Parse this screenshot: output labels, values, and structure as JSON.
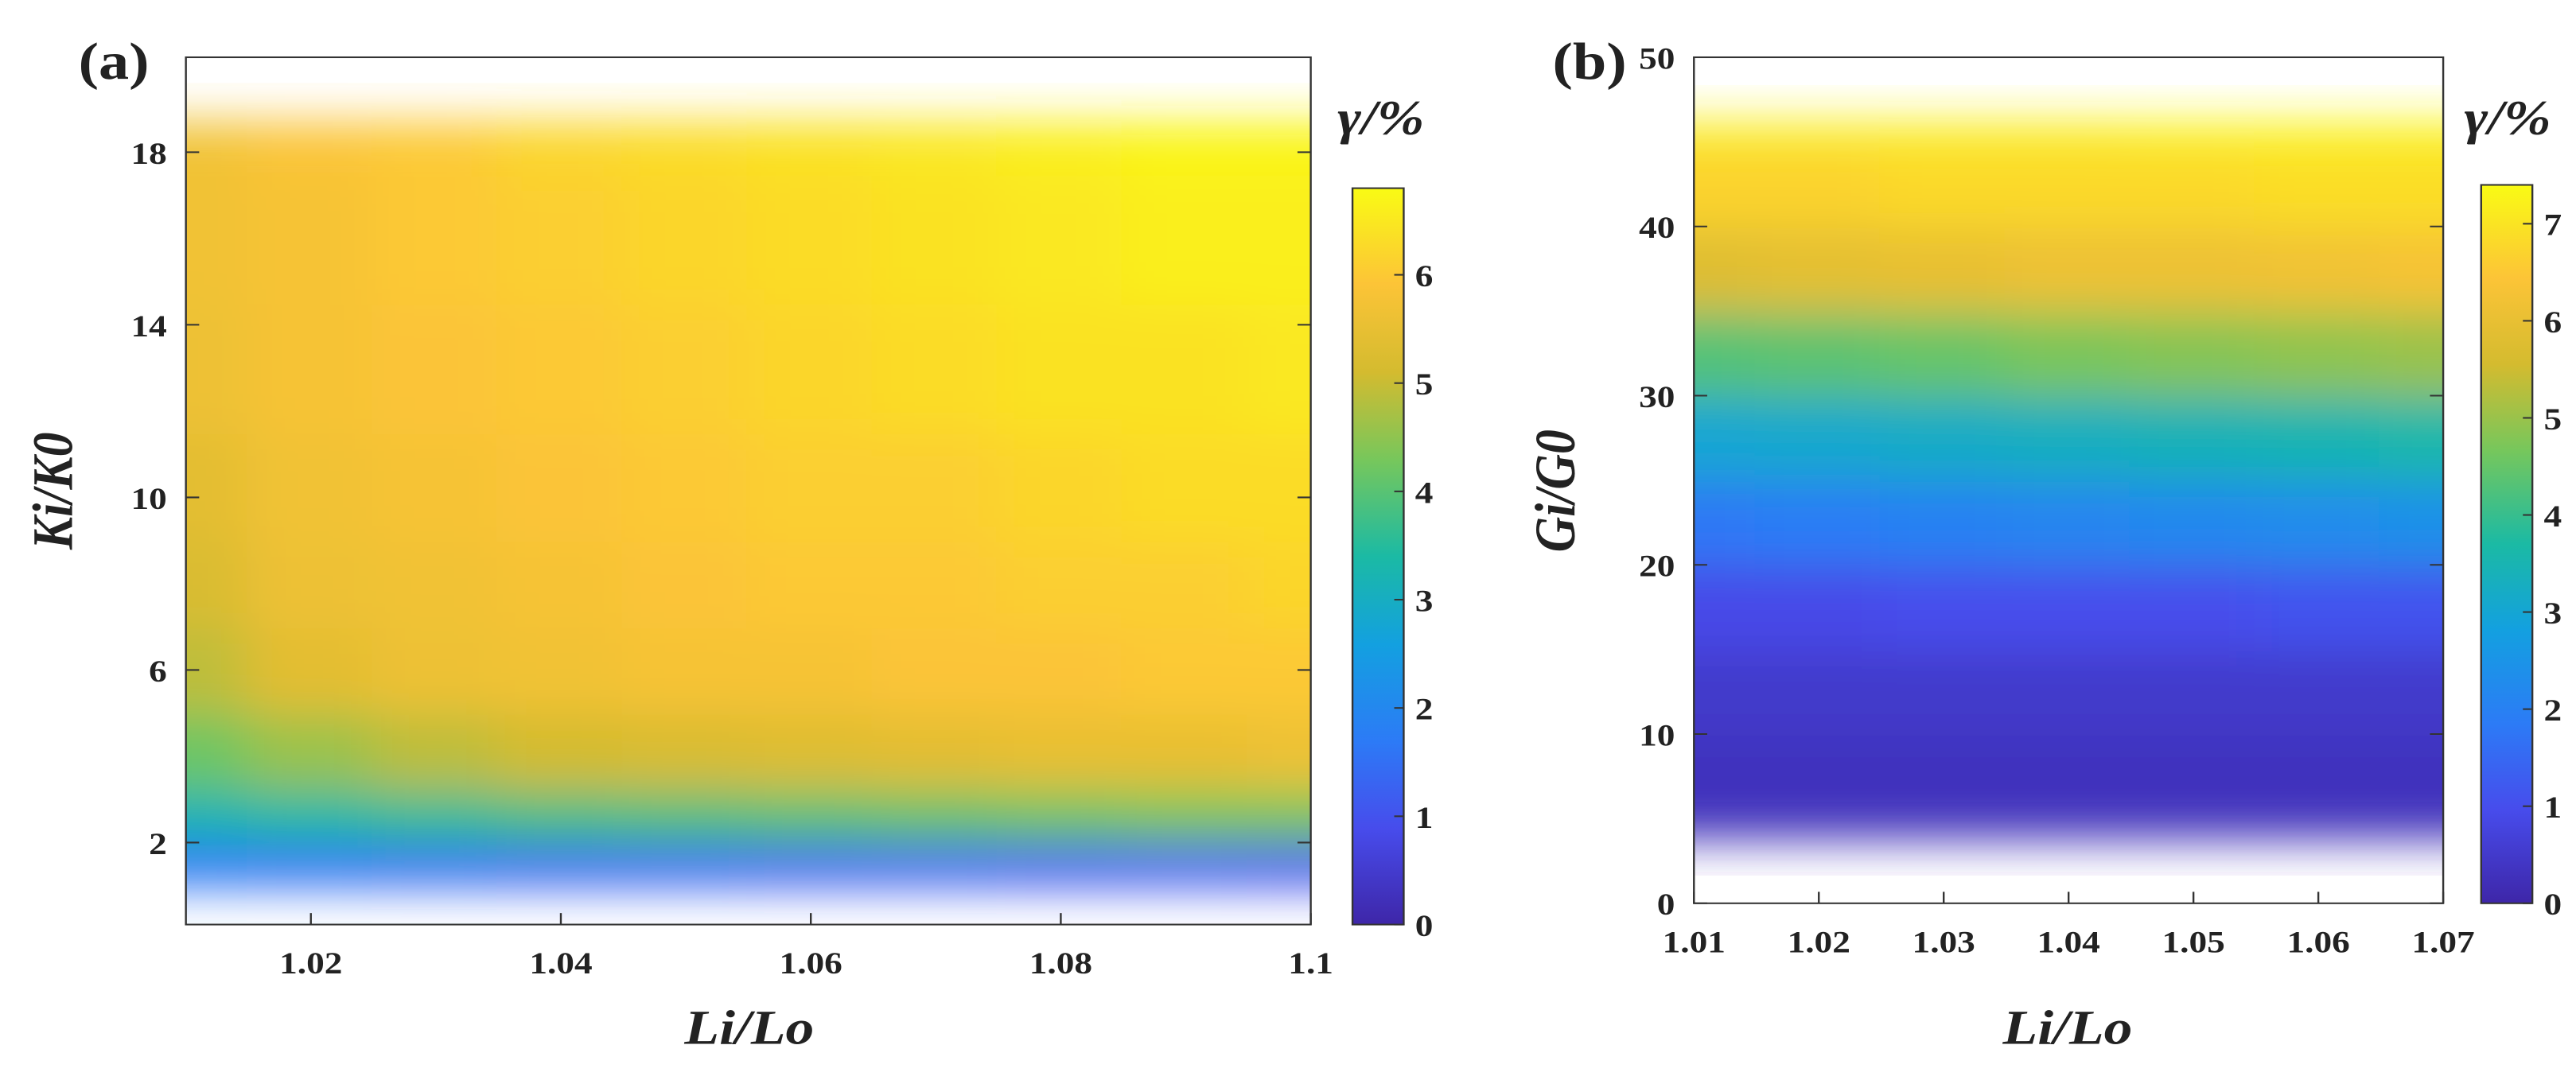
{
  "chart_data": [
    {
      "type": "contour",
      "panel_label": "(a)",
      "xlabel": "Li/Lo",
      "ylabel": "Ki/K0",
      "colorbar_label": "γ/%",
      "xlim": [
        1.01,
        1.1
      ],
      "xticks": [
        1.02,
        1.04,
        1.06,
        1.08,
        1.1
      ],
      "ylim": [
        0.1,
        20.2
      ],
      "yticks": [
        2,
        6,
        10,
        14,
        18
      ],
      "clim": [
        0,
        6.8
      ],
      "cticks": [
        0,
        1,
        2,
        3,
        4,
        5,
        6
      ],
      "colormap": "parula",
      "x": [
        1.01,
        1.02,
        1.03,
        1.04,
        1.05,
        1.06,
        1.07,
        1.08,
        1.09,
        1.1
      ],
      "y": [
        0.5,
        1.5,
        2.5,
        4,
        6,
        8,
        10,
        13,
        16,
        19
      ],
      "z": [
        [
          0.3,
          0.3,
          0.3,
          0.3,
          0.3,
          0.3,
          0.3,
          0.3,
          0.3,
          0.3
        ],
        [
          1.6,
          1.5,
          1.4,
          1.3,
          1.3,
          1.2,
          1.2,
          1.1,
          1.1,
          1.0
        ],
        [
          3.2,
          3.4,
          3.6,
          3.8,
          3.9,
          4.0,
          4.1,
          4.2,
          4.3,
          4.3
        ],
        [
          4.2,
          4.6,
          4.9,
          5.1,
          5.2,
          5.3,
          5.4,
          5.5,
          5.5,
          5.6
        ],
        [
          4.9,
          5.4,
          5.6,
          5.7,
          5.8,
          5.8,
          5.9,
          5.9,
          6.0,
          6.0
        ],
        [
          5.2,
          5.6,
          5.7,
          5.8,
          5.9,
          6.0,
          6.0,
          6.1,
          6.1,
          6.2
        ],
        [
          5.4,
          5.7,
          5.8,
          5.9,
          6.0,
          6.1,
          6.1,
          6.2,
          6.3,
          6.3
        ],
        [
          5.6,
          5.8,
          5.9,
          6.0,
          6.1,
          6.2,
          6.3,
          6.4,
          6.4,
          6.5
        ],
        [
          5.7,
          5.8,
          6.0,
          6.1,
          6.2,
          6.3,
          6.4,
          6.5,
          6.6,
          6.6
        ],
        [
          5.7,
          5.9,
          6.0,
          6.2,
          6.3,
          6.4,
          6.5,
          6.6,
          6.7,
          6.7
        ]
      ]
    },
    {
      "type": "contour",
      "panel_label": "(b)",
      "xlabel": "Li/Lo",
      "ylabel": "Gi/G0",
      "colorbar_label": "γ/%",
      "xlim": [
        1.01,
        1.07
      ],
      "xticks": [
        1.01,
        1.02,
        1.03,
        1.04,
        1.05,
        1.06,
        1.07
      ],
      "ylim": [
        0,
        50
      ],
      "yticks": [
        0,
        10,
        20,
        30,
        40,
        50
      ],
      "clim": [
        0,
        7.4
      ],
      "cticks": [
        0,
        1,
        2,
        3,
        4,
        5,
        6,
        7
      ],
      "colormap": "parula",
      "x": [
        1.01,
        1.02,
        1.03,
        1.04,
        1.05,
        1.06,
        1.07
      ],
      "y": [
        2.5,
        7.5,
        12.5,
        17.5,
        22.5,
        27.5,
        32.5,
        37.5,
        42.5,
        47.5
      ],
      "z": [
        [
          0.2,
          0.2,
          0.2,
          0.2,
          0.2,
          0.2,
          0.2
        ],
        [
          0.3,
          0.3,
          0.3,
          0.3,
          0.3,
          0.3,
          0.3
        ],
        [
          0.5,
          0.5,
          0.5,
          0.5,
          0.5,
          0.5,
          0.5
        ],
        [
          0.9,
          0.9,
          1.0,
          1.0,
          1.0,
          1.1,
          1.1
        ],
        [
          1.8,
          1.9,
          2.0,
          2.1,
          2.2,
          2.3,
          2.4
        ],
        [
          3.0,
          3.1,
          3.2,
          3.3,
          3.4,
          3.5,
          3.6
        ],
        [
          4.3,
          4.4,
          4.5,
          4.7,
          4.8,
          4.9,
          5.0
        ],
        [
          5.8,
          5.9,
          6.0,
          6.1,
          6.1,
          6.2,
          6.3
        ],
        [
          6.7,
          6.7,
          6.8,
          6.8,
          6.8,
          6.9,
          6.9
        ],
        [
          7.3,
          7.3,
          7.3,
          7.3,
          7.4,
          7.4,
          7.4
        ]
      ]
    }
  ]
}
